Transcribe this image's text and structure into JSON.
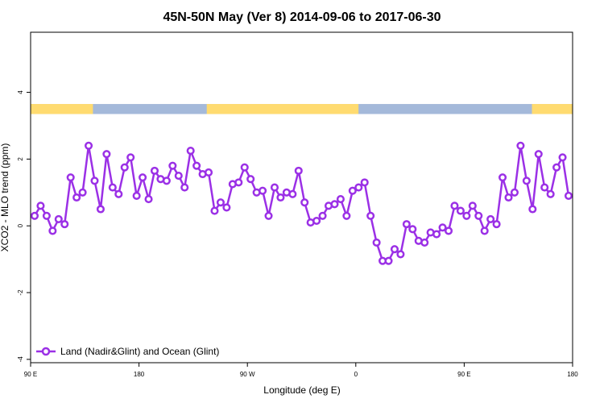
{
  "chart_data": {
    "type": "line",
    "title": "45N-50N May (Ver 8)   2014-09-06 to 2017-06-30",
    "xlabel": "Longitude (deg E)",
    "ylabel": "XCO2 - MLO trend (ppm)",
    "x_tick_labels": [
      "90 E",
      "180",
      "90 W",
      "0",
      "90 E",
      "180"
    ],
    "y_tick_labels": [
      "-4",
      "-2",
      "0",
      "2",
      "4"
    ],
    "ylim": [
      -4.1,
      5.8
    ],
    "grid": false,
    "legend_position": "bottom-left",
    "colors": {
      "series": "#9B30E6",
      "land": "#FFDB70",
      "ocean": "#A4B9DA"
    },
    "series": [
      {
        "name": "Land (Nadir&Glint) and Ocean (Glint)",
        "values": [
          0.3,
          0.6,
          0.3,
          -0.15,
          0.2,
          0.05,
          1.45,
          0.85,
          1.0,
          2.4,
          1.35,
          0.5,
          2.15,
          1.15,
          0.95,
          1.75,
          2.05,
          0.9,
          1.45,
          0.8,
          1.65,
          1.4,
          1.35,
          1.8,
          1.5,
          1.15,
          2.25,
          1.8,
          1.55,
          1.6,
          0.45,
          0.7,
          0.55,
          1.25,
          1.3,
          1.75,
          1.4,
          1.0,
          1.05,
          0.3,
          1.15,
          0.85,
          1.0,
          0.95,
          1.65,
          0.7,
          0.1,
          0.15,
          0.3,
          0.6,
          0.65,
          0.8,
          0.3,
          1.05,
          1.15,
          1.3,
          0.3,
          -0.5,
          -1.05,
          -1.05,
          -0.7,
          -0.85,
          0.05,
          -0.1,
          -0.45,
          -0.5,
          -0.2,
          -0.25,
          -0.05,
          -0.15,
          0.6,
          0.45,
          0.3,
          0.6,
          0.3,
          -0.15,
          0.2,
          0.05,
          1.45,
          0.85,
          1.0,
          2.4,
          1.35,
          0.5,
          2.15,
          1.15,
          0.95,
          1.75,
          2.05,
          0.9
        ]
      }
    ],
    "land_ocean_strip": {
      "y_range": [
        3.35,
        3.65
      ],
      "land_segments": [
        [
          0.0,
          0.115
        ],
        [
          0.325,
          0.605
        ],
        [
          0.925,
          1.0
        ]
      ]
    }
  }
}
